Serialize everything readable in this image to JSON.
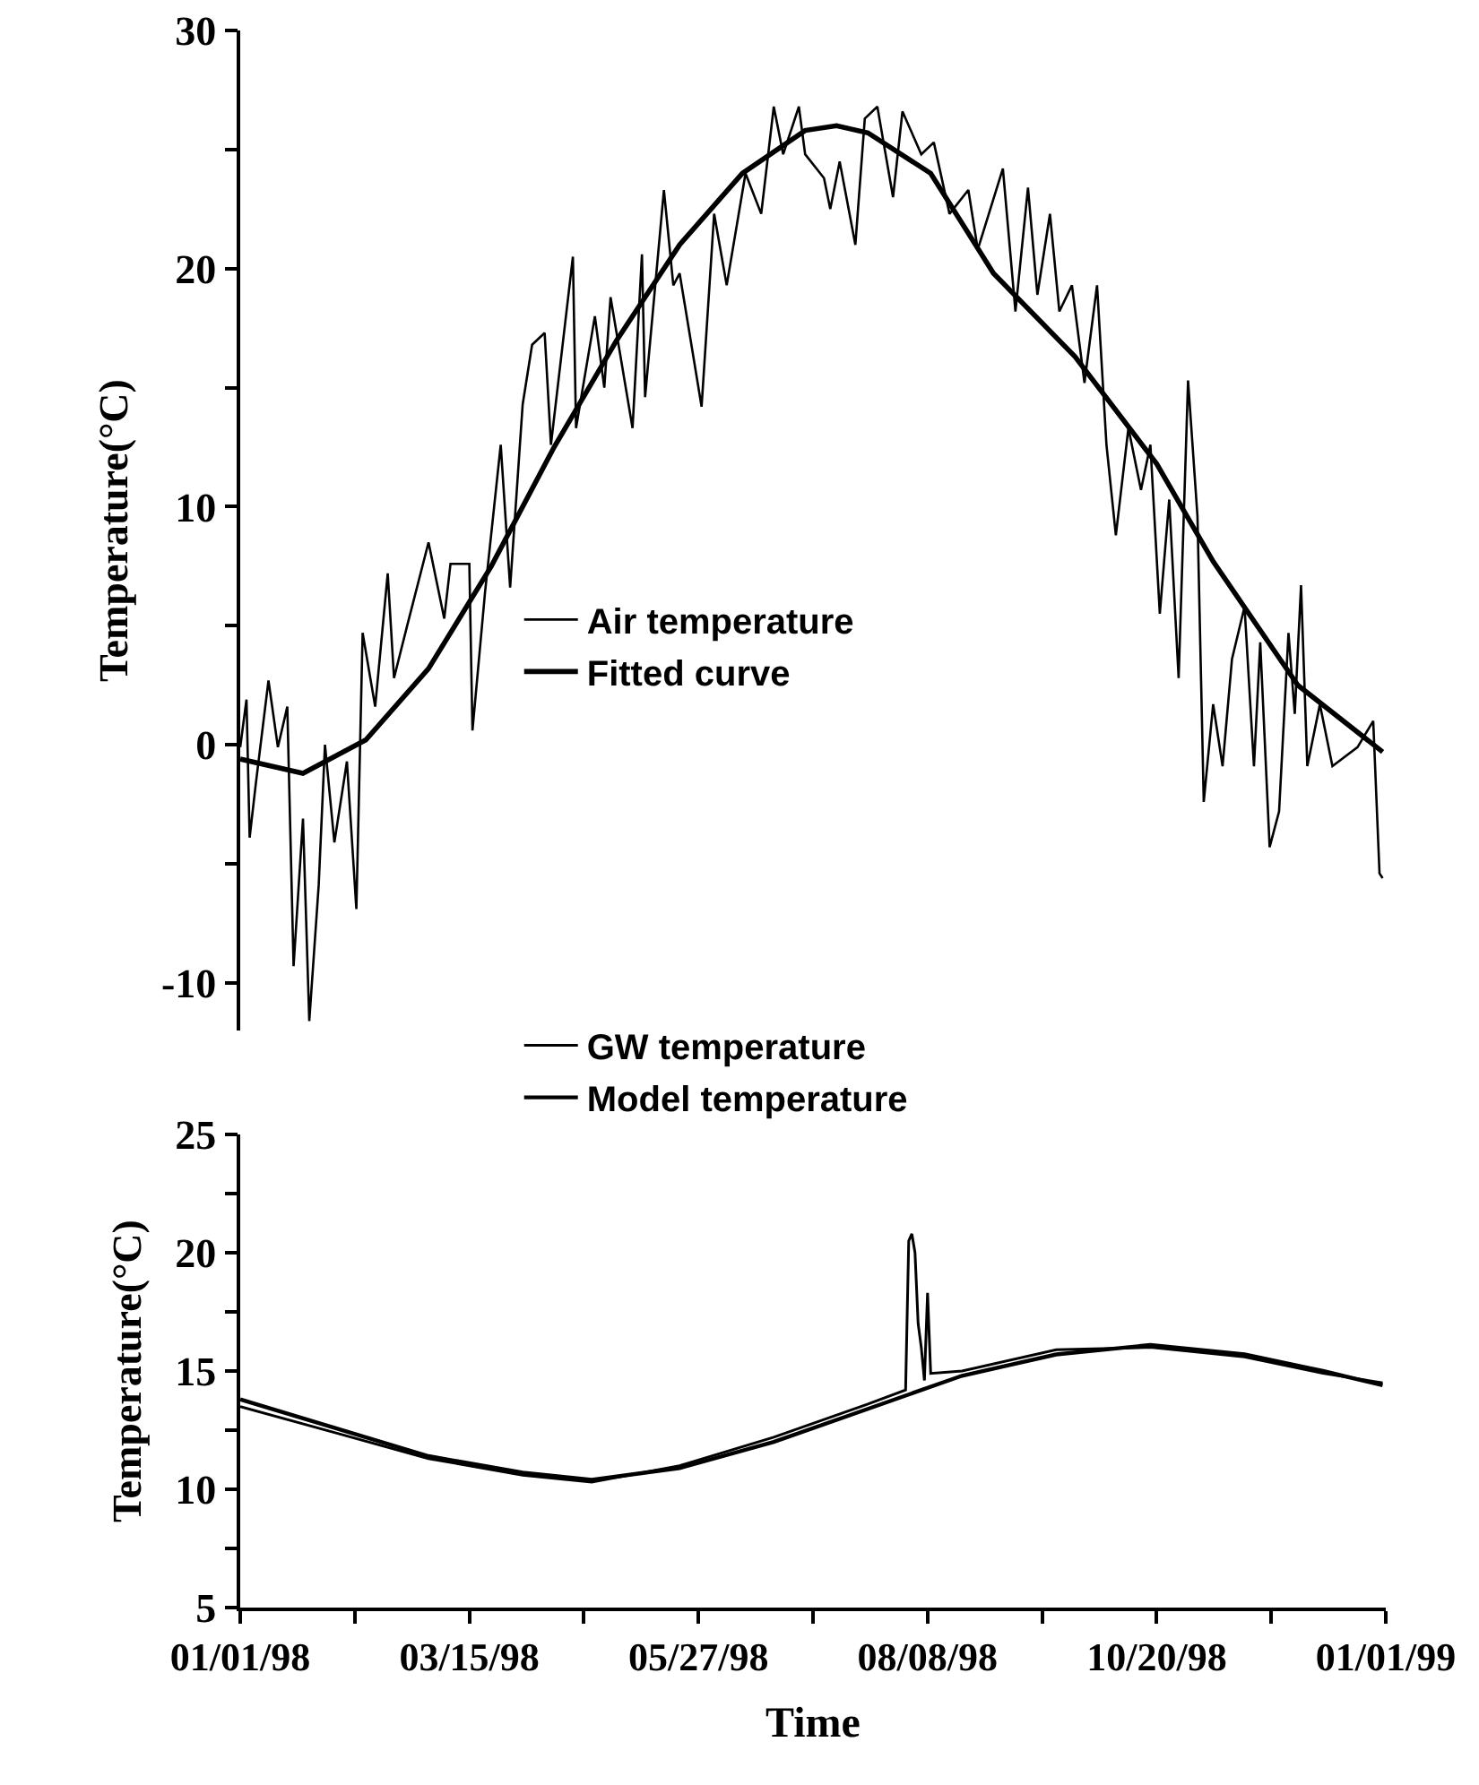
{
  "chart_data": [
    {
      "type": "line",
      "ylabel": "Temperature(°C)",
      "ylim": [
        -12,
        30
      ],
      "yticks": [
        -10,
        {
          "value": -5,
          "label": null
        },
        0,
        {
          "value": 5,
          "label": null
        },
        10,
        {
          "value": 15,
          "label": null
        },
        20,
        {
          "value": 25,
          "label": null
        },
        30
      ],
      "xlim": [
        "1998-01-01",
        "1999-01-01"
      ],
      "tick_labels": "y",
      "grid": false,
      "legend": "center",
      "marker": "none",
      "line_style": "solid",
      "series": [
        {
          "name": "Air temperature",
          "color": "#000000",
          "x": [
            "1998-01-01",
            "1998-01-03",
            "1998-01-04",
            "1998-01-06",
            "1998-01-10",
            "1998-01-13",
            "1998-01-16",
            "1998-01-18",
            "1998-01-21",
            "1998-01-23",
            "1998-01-26",
            "1998-01-28",
            "1998-01-31",
            "1998-02-04",
            "1998-02-07",
            "1998-02-09",
            "1998-02-13",
            "1998-02-17",
            "1998-02-19",
            "1998-02-23",
            "1998-03-02",
            "1998-03-07",
            "1998-03-09",
            "1998-03-15",
            "1998-03-16",
            "1998-03-20",
            "1998-03-25",
            "1998-03-28",
            "1998-04-01",
            "1998-04-04",
            "1998-04-08",
            "1998-04-10",
            "1998-04-17",
            "1998-04-18",
            "1998-04-24",
            "1998-04-27",
            "1998-04-29",
            "1998-05-06",
            "1998-05-09",
            "1998-05-10",
            "1998-05-16",
            "1998-05-19",
            "1998-05-21",
            "1998-05-28",
            "1998-06-01",
            "1998-06-05",
            "1998-06-11",
            "1998-06-16",
            "1998-06-20",
            "1998-06-23",
            "1998-06-28",
            "1998-06-30",
            "1998-07-06",
            "1998-07-08",
            "1998-07-11",
            "1998-07-16",
            "1998-07-19",
            "1998-07-23",
            "1998-07-28",
            "1998-07-31",
            "1998-08-06",
            "1998-08-10",
            "1998-08-15",
            "1998-08-21",
            "1998-08-24",
            "1998-09-01",
            "1998-09-05",
            "1998-09-09",
            "1998-09-12",
            "1998-09-16",
            "1998-09-19",
            "1998-09-23",
            "1998-09-27",
            "1998-10-01",
            "1998-10-04",
            "1998-10-07",
            "1998-10-11",
            "1998-10-15",
            "1998-10-18",
            "1998-10-21",
            "1998-10-24",
            "1998-10-27",
            "1998-10-30",
            "1998-11-02",
            "1998-11-04",
            "1998-11-07",
            "1998-11-10",
            "1998-11-13",
            "1998-11-17",
            "1998-11-20",
            "1998-11-22",
            "1998-11-25",
            "1998-11-28",
            "1998-12-01",
            "1998-12-03",
            "1998-12-05",
            "1998-12-07",
            "1998-12-11",
            "1998-12-15",
            "1998-12-23",
            "1998-12-28",
            "1998-12-30",
            "1998-12-31"
          ],
          "values": [
            -0.1,
            1.9,
            -3.9,
            -1.6,
            2.7,
            -0.1,
            1.6,
            -9.3,
            -3.1,
            -11.6,
            -5.9,
            0,
            -4.1,
            -0.7,
            -6.9,
            4.7,
            1.6,
            7.2,
            2.8,
            4.9,
            8.5,
            5.3,
            7.6,
            7.6,
            0.6,
            6.4,
            12.6,
            6.6,
            14.3,
            16.8,
            17.3,
            12.6,
            20.5,
            13.3,
            18.0,
            15.0,
            18.8,
            13.3,
            20.6,
            14.6,
            23.3,
            19.3,
            19.8,
            14.2,
            22.3,
            19.3,
            24.0,
            22.3,
            26.8,
            24.8,
            26.8,
            24.8,
            23.8,
            22.5,
            24.5,
            21.0,
            26.3,
            26.8,
            23.0,
            26.6,
            24.8,
            25.3,
            22.3,
            23.3,
            20.8,
            24.2,
            18.2,
            23.4,
            18.9,
            22.3,
            18.2,
            19.3,
            15.2,
            19.3,
            12.6,
            8.8,
            13.3,
            10.7,
            12.6,
            5.5,
            10.3,
            2.8,
            15.3,
            9.6,
            -2.4,
            1.7,
            -0.9,
            3.6,
            5.8,
            -0.9,
            4.3,
            -4.3,
            -2.8,
            4.7,
            1.3,
            6.7,
            -0.9,
            1.7,
            -0.9,
            -0.1,
            1.0,
            -5.4,
            -5.6
          ]
        },
        {
          "name": "Fitted curve",
          "color": "#000000",
          "x": [
            "1998-01-01",
            "1998-01-21",
            "1998-02-10",
            "1998-03-02",
            "1998-03-22",
            "1998-04-11",
            "1998-05-01",
            "1998-05-21",
            "1998-06-10",
            "1998-06-30",
            "1998-07-10",
            "1998-07-20",
            "1998-08-09",
            "1998-08-29",
            "1998-09-24",
            "1998-10-20",
            "1998-11-07",
            "1998-12-04",
            "1998-12-31"
          ],
          "values": [
            -0.6,
            -1.2,
            0.2,
            3.2,
            7.5,
            12.5,
            17,
            21,
            24,
            25.8,
            26,
            25.7,
            24,
            19.8,
            16.3,
            11.8,
            7.7,
            2.5,
            -0.3
          ]
        }
      ]
    },
    {
      "type": "line",
      "ylabel": "Temperature(°C)",
      "xlabel": "Time",
      "ylim": [
        5,
        25
      ],
      "yticks": [
        5,
        {
          "value": 7.5,
          "label": null
        },
        10,
        {
          "value": 12.5,
          "label": null
        },
        15,
        {
          "value": 17.5,
          "label": null
        },
        20,
        {
          "value": 22.5,
          "label": null
        },
        25
      ],
      "xlim": [
        "1998-01-01",
        "1999-01-01"
      ],
      "xticks": [
        {
          "value": "1998-01-01",
          "label": "01/01/98"
        },
        {
          "value": "1998-02-06T12:00",
          "label": null
        },
        {
          "value": "1998-03-15",
          "label": "03/15/98"
        },
        {
          "value": "1998-04-20T12:00",
          "label": null
        },
        {
          "value": "1998-05-27",
          "label": "05/27/98"
        },
        {
          "value": "1998-07-02T12:00",
          "label": null
        },
        {
          "value": "1998-08-08",
          "label": "08/08/98"
        },
        {
          "value": "1998-09-13T12:00",
          "label": null
        },
        {
          "value": "1998-10-20",
          "label": "10/20/98"
        },
        {
          "value": "1998-11-25T12:00",
          "label": null
        },
        {
          "value": "1999-01-01",
          "label": "01/01/99"
        }
      ],
      "grid": false,
      "legend": "top",
      "marker": "none",
      "line_style": "solid",
      "series": [
        {
          "name": "GW temperature",
          "color": "#000000",
          "x": [
            "1998-01-01",
            "1998-01-31",
            "1998-03-02",
            "1998-04-01",
            "1998-04-23",
            "1998-05-21",
            "1998-06-20",
            "1998-07-20",
            "1998-08-01",
            "1998-08-02",
            "1998-08-03",
            "1998-08-04",
            "1998-08-05",
            "1998-08-06",
            "1998-08-07",
            "1998-08-08",
            "1998-08-09",
            "1998-08-19",
            "1998-09-18",
            "1998-10-18",
            "1998-11-17",
            "1998-12-12",
            "1998-12-31"
          ],
          "values": [
            13.5,
            12.4,
            11.3,
            10.6,
            10.3,
            11.0,
            12.2,
            13.6,
            14.2,
            20.5,
            20.8,
            20.0,
            17.0,
            16.0,
            14.6,
            18.3,
            14.9,
            15.0,
            15.9,
            16.0,
            15.6,
            14.9,
            14.5
          ]
        },
        {
          "name": "Model temperature",
          "color": "#000000",
          "x": [
            "1998-01-01",
            "1998-01-31",
            "1998-03-02",
            "1998-04-01",
            "1998-04-23",
            "1998-05-21",
            "1998-06-20",
            "1998-07-20",
            "1998-08-19",
            "1998-09-18",
            "1998-10-18",
            "1998-11-17",
            "1998-12-12",
            "1998-12-31"
          ],
          "values": [
            13.8,
            12.6,
            11.4,
            10.7,
            10.4,
            10.9,
            12.0,
            13.4,
            14.8,
            15.7,
            16.1,
            15.7,
            15.0,
            14.4
          ]
        }
      ]
    }
  ]
}
